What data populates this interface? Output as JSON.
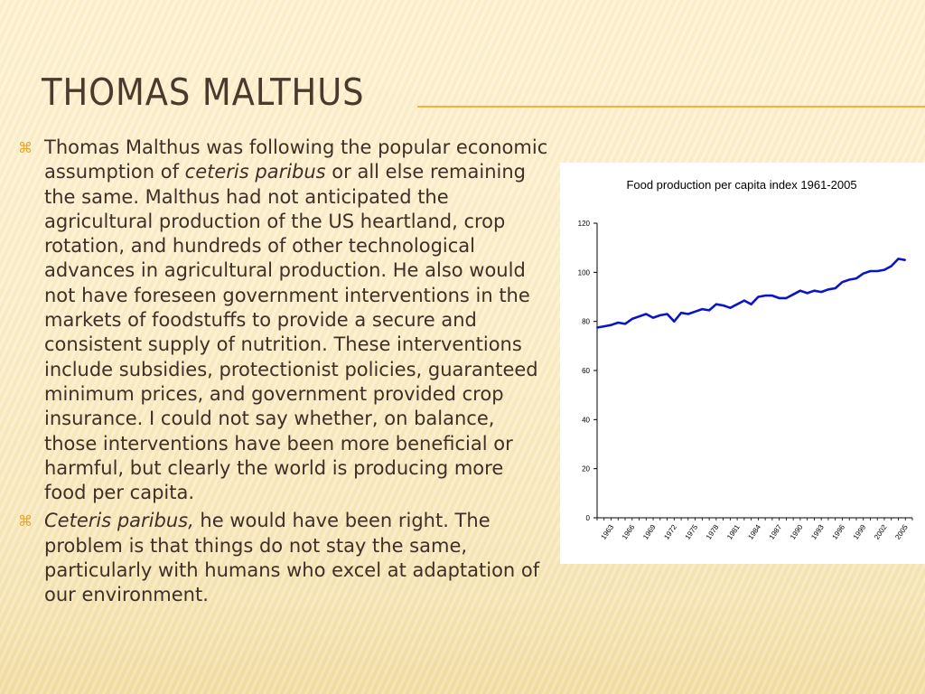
{
  "slide": {
    "title": "Thomas Malthus"
  },
  "bullets": [
    {
      "marker_icon": "x-bullet-icon",
      "marker_glyph": "⌘",
      "segments": [
        {
          "text": "Thomas Malthus was following the popular economic assumption of ",
          "italic": false
        },
        {
          "text": "ceteris paribus",
          "italic": true
        },
        {
          "text": " or all else remaining the same.  Malthus had not anticipated the agricultural production of the US heartland, crop rotation, and hundreds of other technological advances in agricultural production.  He also would not have foreseen government interventions in the markets of foodstuffs to provide a secure and consistent supply of nutrition.  These interventions include subsidies, protectionist policies, guaranteed minimum prices, and government provided crop insurance.  I could not say whether, on balance, those interventions have been more beneficial or harmful, but clearly the world is producing more food per capita.",
          "italic": false
        }
      ]
    },
    {
      "marker_icon": "x-bullet-icon",
      "marker_glyph": "⌘",
      "segments": [
        {
          "text": "Ceteris paribus,",
          "italic": true
        },
        {
          "text": " he would have been right.  The problem is that things do not stay the same, particularly with humans who excel at adaptation of our environment.",
          "italic": false
        }
      ]
    }
  ],
  "colors": {
    "title": "#4a3a2e",
    "accent": "#f2b13c",
    "bullet_marker": "#e8a52c",
    "body_text": "#3e3026",
    "series_line": "#0a14c8"
  },
  "chart_data": {
    "type": "line",
    "title": "Food production per capita index 1961-2005",
    "xlabel": "",
    "ylabel": "",
    "xlim": [
      1961,
      2006
    ],
    "ylim": [
      0,
      120
    ],
    "y_ticks": [
      0,
      20,
      40,
      60,
      80,
      100,
      120
    ],
    "x_tick_labels": [
      "1963",
      "1966",
      "1969",
      "1972",
      "1975",
      "1978",
      "1981",
      "1984",
      "1987",
      "1990",
      "1993",
      "1996",
      "1999",
      "2002",
      "2005"
    ],
    "grid": false,
    "legend": "none",
    "series": [
      {
        "x": [
          1961,
          1962,
          1963,
          1964,
          1965,
          1966,
          1967,
          1968,
          1969,
          1970,
          1971,
          1972,
          1973,
          1974,
          1975,
          1976,
          1977,
          1978,
          1979,
          1980,
          1981,
          1982,
          1983,
          1984,
          1985,
          1986,
          1987,
          1988,
          1989,
          1990,
          1991,
          1992,
          1993,
          1994,
          1995,
          1996,
          1997,
          1998,
          1999,
          2000,
          2001,
          2002,
          2003,
          2004,
          2005
        ],
        "values": [
          77.5,
          78,
          78.5,
          79.5,
          79,
          81,
          82,
          83,
          81.5,
          82.5,
          83,
          80,
          83.5,
          83,
          84,
          85,
          84.5,
          87,
          86.5,
          85.5,
          87,
          88.5,
          87,
          90,
          90.5,
          90.5,
          89.5,
          89.5,
          91,
          92.5,
          91.5,
          92.5,
          92,
          93,
          93.5,
          96,
          97,
          97.5,
          99.5,
          100.5,
          100.5,
          101,
          102.5,
          105.5,
          105
        ]
      }
    ]
  }
}
